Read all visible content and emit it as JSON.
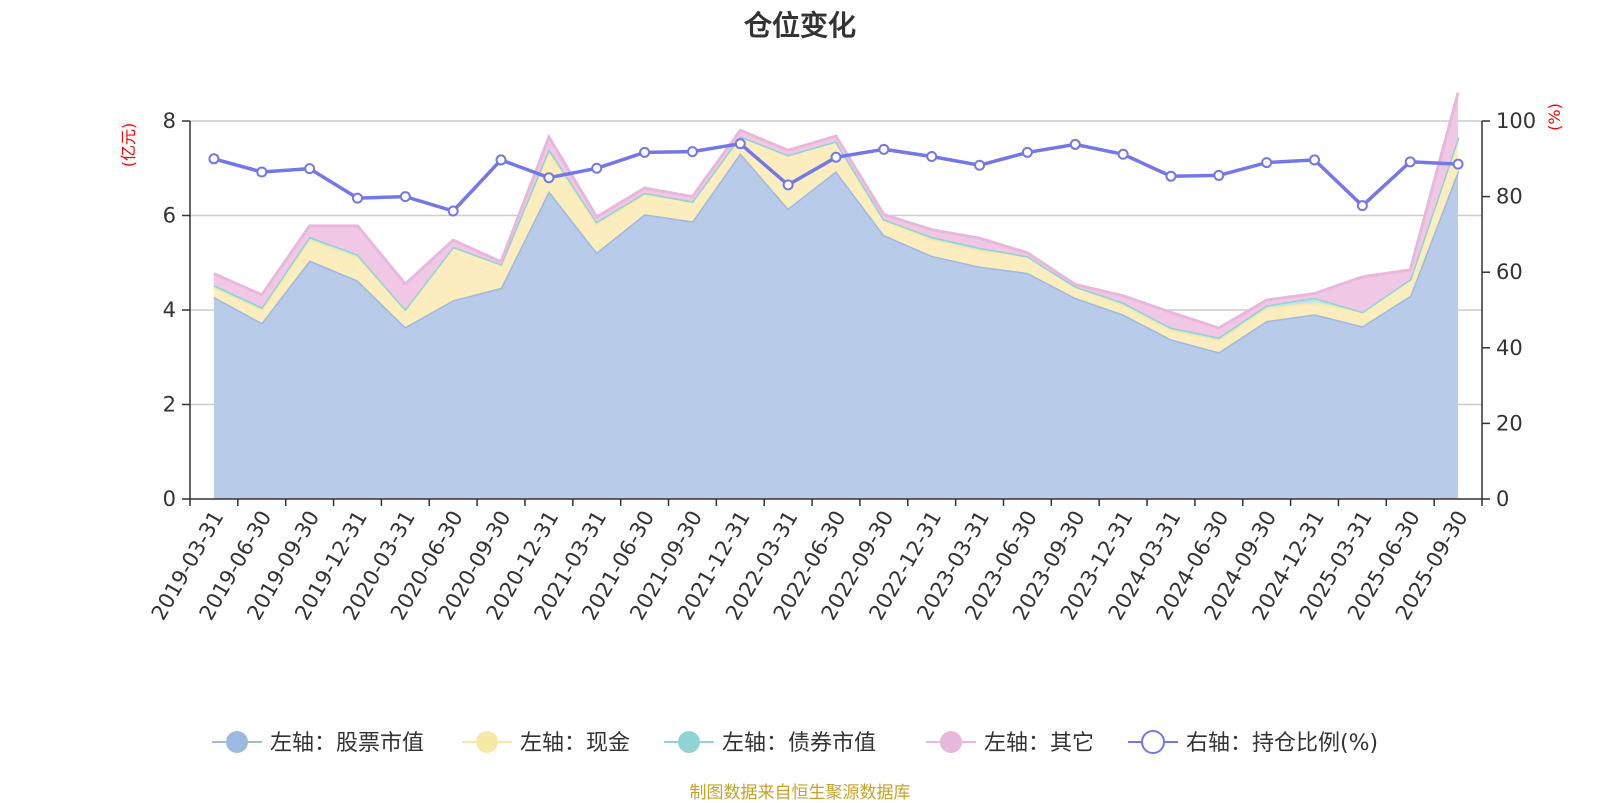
{
  "chart_data": {
    "type": "area",
    "title": "仓位变化",
    "categories": [
      "2019-03-31",
      "2019-06-30",
      "2019-09-30",
      "2019-12-31",
      "2020-03-31",
      "2020-06-30",
      "2020-09-30",
      "2020-12-31",
      "2021-03-31",
      "2021-06-30",
      "2021-09-30",
      "2021-12-31",
      "2022-03-31",
      "2022-06-30",
      "2022-09-30",
      "2022-12-31",
      "2023-03-31",
      "2023-06-30",
      "2023-09-30",
      "2023-12-31",
      "2024-03-31",
      "2024-06-30",
      "2024-09-30",
      "2024-12-31",
      "2025-03-31",
      "2025-06-30",
      "2025-09-30"
    ],
    "left_axis": {
      "name": "(亿元)",
      "min": 0,
      "max": 8,
      "ticks": [
        0,
        2,
        4,
        6,
        8
      ]
    },
    "right_axis": {
      "name": "(%)",
      "min": 0,
      "max": 100,
      "ticks": [
        0,
        20,
        40,
        60,
        80,
        100
      ]
    },
    "series": [
      {
        "name": "左轴：股票市值",
        "axis": "left",
        "kind": "stacked-area",
        "color": "#9db9e1",
        "fill": "#b8cbe8",
        "values": [
          4.28,
          3.73,
          5.05,
          4.63,
          3.64,
          4.21,
          4.47,
          6.52,
          5.22,
          6.03,
          5.88,
          7.32,
          6.15,
          6.94,
          5.59,
          5.15,
          4.92,
          4.79,
          4.26,
          3.91,
          3.38,
          3.11,
          3.77,
          3.91,
          3.66,
          4.3,
          6.95
        ]
      },
      {
        "name": "左轴：现金",
        "axis": "left",
        "kind": "stacked-area",
        "color": "#f7e8a8",
        "fill": "#fbedbd",
        "values": [
          0.2,
          0.28,
          0.45,
          0.5,
          0.38,
          1.13,
          0.5,
          0.84,
          0.6,
          0.42,
          0.42,
          0.36,
          1.13,
          0.63,
          0.33,
          0.35,
          0.35,
          0.35,
          0.24,
          0.2,
          0.2,
          0.26,
          0.28,
          0.25,
          0.3,
          0.35,
          0.7
        ]
      },
      {
        "name": "左轴：债券市值",
        "axis": "left",
        "kind": "stacked-area",
        "color": "#8fd3d3",
        "fill": "#bfe6e6",
        "values": [
          0.05,
          0.05,
          0.05,
          0.05,
          0.0,
          0.0,
          0.0,
          0.05,
          0.05,
          0.03,
          0.0,
          0.0,
          0.0,
          0.0,
          0.0,
          0.05,
          0.05,
          0.0,
          0.0,
          0.05,
          0.05,
          0.05,
          0.05,
          0.1,
          0.0,
          0.0,
          0.0
        ]
      },
      {
        "name": "左轴：其它",
        "axis": "left",
        "kind": "stacked-area",
        "color": "#e8b8dc",
        "fill": "#f0c8e6",
        "values": [
          0.24,
          0.26,
          0.23,
          0.6,
          0.53,
          0.14,
          0.05,
          0.25,
          0.1,
          0.1,
          0.1,
          0.12,
          0.1,
          0.11,
          0.1,
          0.15,
          0.2,
          0.07,
          0.04,
          0.14,
          0.32,
          0.2,
          0.11,
          0.09,
          0.74,
          0.2,
          0.95
        ]
      },
      {
        "name": "右轴：持仓比例(%)",
        "axis": "right",
        "kind": "line",
        "color": "#7378e8",
        "values": [
          90.0,
          86.5,
          87.4,
          79.6,
          80.0,
          76.2,
          89.7,
          85.0,
          87.5,
          91.7,
          91.9,
          94.0,
          83.1,
          90.4,
          92.5,
          90.6,
          88.3,
          91.7,
          93.8,
          91.2,
          85.4,
          85.6,
          89.0,
          89.7,
          77.6,
          89.2,
          88.6
        ]
      }
    ],
    "legend_position": "bottom"
  },
  "source_note": "制图数据来自恒生聚源数据库"
}
